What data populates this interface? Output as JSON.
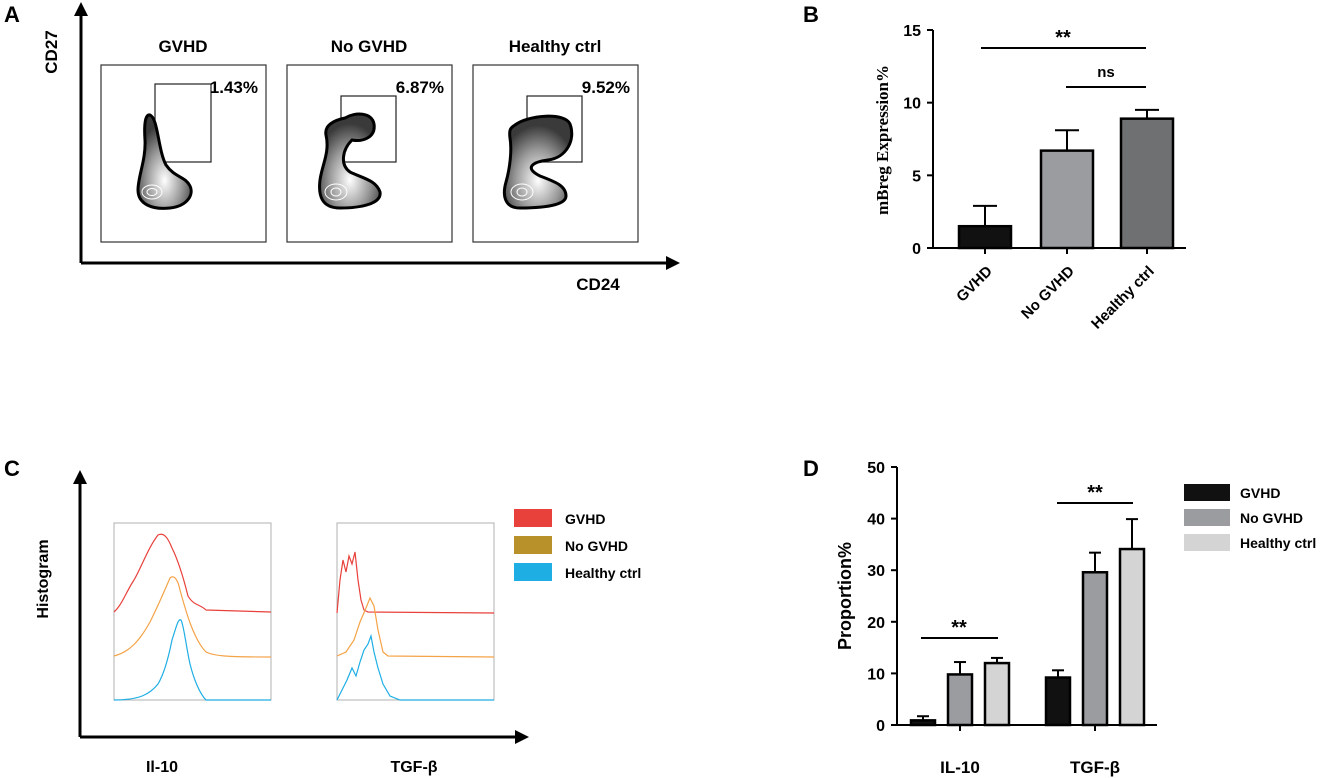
{
  "panels": {
    "a": {
      "letter": "A",
      "y_axis_label": "CD27",
      "x_axis_label": "CD24",
      "plots": [
        {
          "title": "GVHD",
          "percent": "1.43%"
        },
        {
          "title": "No GVHD",
          "percent": "6.87%"
        },
        {
          "title": "Healthy ctrl",
          "percent": "9.52%"
        }
      ]
    },
    "b": {
      "letter": "B",
      "significance": [
        {
          "label": "**",
          "from": "GVHD",
          "to": "Healthy ctrl"
        },
        {
          "label": "ns",
          "from": "No GVHD",
          "to": "Healthy ctrl"
        }
      ]
    },
    "c": {
      "letter": "C",
      "y_axis_label": "Histogram",
      "x_labels": [
        "Il-10",
        "TGF-β"
      ],
      "legend": [
        {
          "label": "GVHD",
          "color": "#e8403a"
        },
        {
          "label": "No GVHD",
          "color": "#b8912a"
        },
        {
          "label": "Healthy ctrl",
          "color": "#1eaee4"
        }
      ]
    },
    "d": {
      "letter": "D",
      "significance": [
        {
          "label": "**",
          "group": "IL-10"
        },
        {
          "label": "**",
          "group": "TGF-β"
        }
      ]
    }
  },
  "chart_data": [
    {
      "type": "bar",
      "panel": "B",
      "categories": [
        "GVHD",
        "No GVHD",
        "Healthy ctrl"
      ],
      "values": [
        1.5,
        6.7,
        8.9
      ],
      "errors": [
        1.4,
        1.4,
        0.6
      ],
      "colors": [
        "#111111",
        "#9a9ca0",
        "#6e7072"
      ],
      "ylabel": "mBreg Expression%",
      "ylim": [
        0,
        15
      ],
      "yticks": [
        0,
        5,
        10,
        15
      ]
    },
    {
      "type": "bar",
      "panel": "D",
      "categories": [
        "IL-10",
        "TGF-β"
      ],
      "series": [
        {
          "name": "GVHD",
          "values": [
            0.9,
            9.2
          ],
          "errors": [
            0.8,
            1.4
          ],
          "color": "#111111"
        },
        {
          "name": "No GVHD",
          "values": [
            9.8,
            29.6
          ],
          "errors": [
            2.4,
            3.8
          ],
          "color": "#9a9ca0"
        },
        {
          "name": "Healthy ctrl",
          "values": [
            12.0,
            34.1
          ],
          "errors": [
            1.0,
            5.8
          ],
          "color": "#d4d4d4"
        }
      ],
      "ylabel": "Proportion%",
      "ylim": [
        0,
        50
      ],
      "yticks": [
        0,
        10,
        20,
        30,
        40,
        50
      ],
      "legend_position": "right"
    }
  ]
}
